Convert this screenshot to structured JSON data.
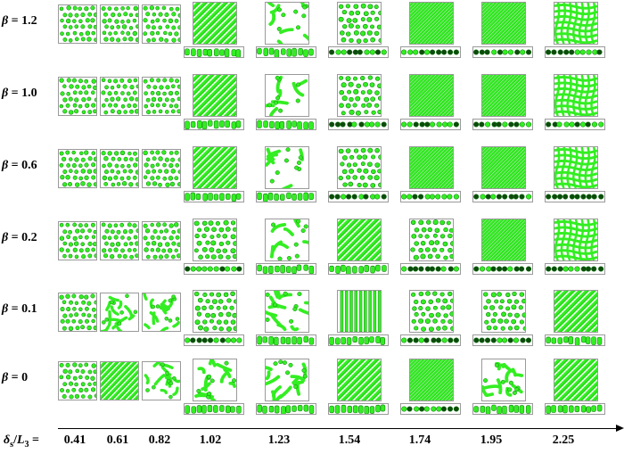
{
  "figure": {
    "row_labels": [
      {
        "symbol": "β",
        "eq": " = ",
        "value": "1.2"
      },
      {
        "symbol": "β",
        "eq": " = ",
        "value": "1.0"
      },
      {
        "symbol": "β",
        "eq": " = ",
        "value": "0.6"
      },
      {
        "symbol": "β",
        "eq": " = ",
        "value": "0.2"
      },
      {
        "symbol": "β",
        "eq": " = ",
        "value": "0.1"
      },
      {
        "symbol": "β",
        "eq": " = ",
        "value": "0"
      }
    ],
    "x_axis": {
      "symbol": "δ",
      "subscript_s": "s",
      "slash": "/",
      "L": "L",
      "subscript_3": "3",
      "eq": " =",
      "ticks": [
        "0.41",
        "0.61",
        "0.82",
        "1.02",
        "1.23",
        "1.54",
        "1.74",
        "1.95",
        "2.25"
      ]
    },
    "colors": {
      "phase_fill": "#33ee22",
      "phase_edge": "#0c7a0c",
      "phase_dark": "#0d4a0d",
      "frame": "#9a9a9a"
    },
    "morphology_grid": [
      [
        "dots",
        "dots",
        "dots",
        "stripes",
        "wavy",
        "dots",
        "dense",
        "dense",
        "network"
      ],
      [
        "dots",
        "dots",
        "dots",
        "stripes",
        "wavy",
        "dots",
        "dense",
        "dense",
        "network"
      ],
      [
        "dots",
        "dots",
        "dots",
        "stripes",
        "wavy",
        "dots",
        "dense",
        "dense",
        "network"
      ],
      [
        "dots",
        "dots",
        "dots",
        "dots",
        "wavy",
        "stripes",
        "dots",
        "dense",
        "network"
      ],
      [
        "dots",
        "worm",
        "worm",
        "dots",
        "worm",
        "vstripes",
        "dots",
        "dots",
        "stripes"
      ],
      [
        "dots",
        "stripes",
        "worm",
        "worm",
        "worm",
        "stripes",
        "dense",
        "worm",
        "stripes"
      ]
    ]
  }
}
